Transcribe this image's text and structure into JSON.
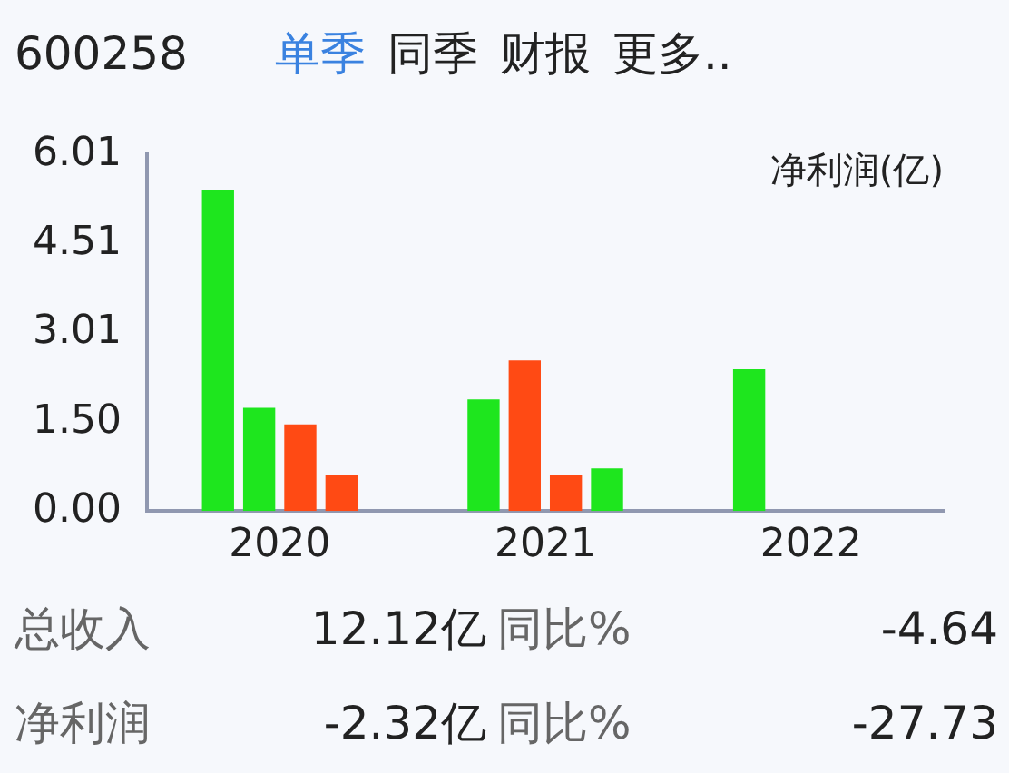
{
  "chart_data": {
    "type": "bar",
    "title": "600258",
    "ylabel": "净利润(亿)",
    "categories": [
      "2020",
      "2021",
      "2022"
    ],
    "series": [
      {
        "colors": [
          "#1ee61e",
          "#1ee61e",
          "#1ee61e"
        ],
        "values": [
          5.42,
          1.88,
          2.39
        ]
      },
      {
        "colors": [
          "#1ee61e",
          "#ff4a14",
          null
        ],
        "values": [
          1.74,
          2.54,
          null
        ]
      },
      {
        "colors": [
          "#ff4a14",
          "#ff4a14",
          null
        ],
        "values": [
          1.46,
          0.61,
          null
        ]
      },
      {
        "colors": [
          "#ff4a14",
          "#1ee61e",
          null
        ],
        "values": [
          0.61,
          0.72,
          null
        ]
      }
    ],
    "ylim": [
      0,
      6.01
    ],
    "yticks": [
      6.01,
      4.51,
      3.01,
      {
        "value": 1.5,
        "label": "1.50"
      },
      {
        "value": 0,
        "label": "0.00"
      }
    ],
    "annotations": [
      "单季",
      "同季",
      "财报",
      "更多..",
      "总收入",
      "12.12亿",
      "同比%",
      "-4.64",
      "净利润",
      "-2.32亿",
      "同比%",
      "-27.73"
    ]
  }
}
